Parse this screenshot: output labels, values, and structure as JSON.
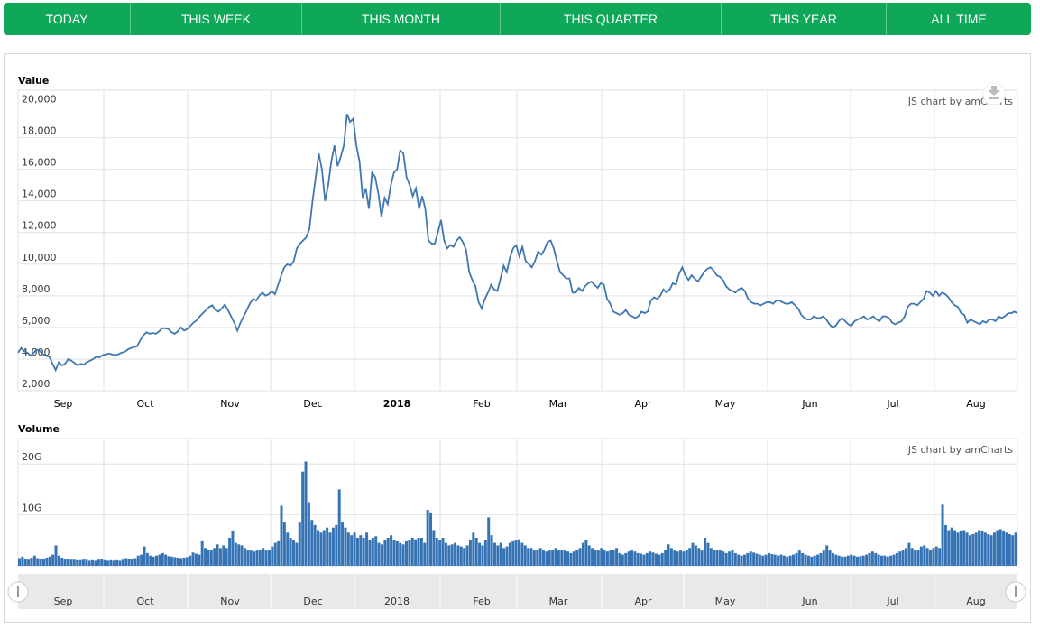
{
  "tabs": [
    {
      "label": "TODAY"
    },
    {
      "label": "THIS WEEK"
    },
    {
      "label": "THIS MONTH"
    },
    {
      "label": "THIS QUARTER"
    },
    {
      "label": "THIS YEAR"
    },
    {
      "label": "ALL TIME"
    }
  ],
  "credit": "JS chart by amCharts",
  "colors": {
    "accent": "#0ea858",
    "line": "#3f77b0",
    "bars": "#3573b4"
  },
  "chart_data": [
    {
      "type": "line",
      "title": "Value",
      "ylim": [
        2000,
        21000
      ],
      "yticks": [
        "2,000",
        "4,000",
        "6,000",
        "8,000",
        "10,000",
        "12,000",
        "14,000",
        "16,000",
        "18,000",
        "20,000"
      ],
      "xticks": [
        "Sep",
        "Oct",
        "Nov",
        "Dec",
        "2018",
        "Feb",
        "Mar",
        "Apr",
        "May",
        "Jun",
        "Jul",
        "Aug"
      ],
      "x_start": "2017-08-17",
      "x_end": "2018-08-20",
      "series": [
        {
          "values": [
            4400,
            4700,
            4500,
            4400,
            4200,
            4400,
            4600,
            4500,
            4300,
            4200,
            4150,
            3700,
            3300,
            3800,
            3600,
            3700,
            4000,
            3900,
            3750,
            3600,
            3700,
            3650,
            3800,
            3900,
            4000,
            4150,
            4100,
            4250,
            4300,
            4350,
            4300,
            4250,
            4300,
            4400,
            4450,
            4600,
            4700,
            4750,
            4800,
            5200,
            5500,
            5700,
            5600,
            5650,
            5600,
            5750,
            5950,
            5950,
            5900,
            5700,
            5600,
            5750,
            6000,
            5800,
            5900,
            6100,
            6300,
            6450,
            6700,
            6900,
            7100,
            7300,
            7400,
            7100,
            7000,
            7200,
            7450,
            7100,
            6700,
            6300,
            5800,
            6300,
            6700,
            7100,
            7500,
            7800,
            7700,
            8000,
            8200,
            8000,
            8100,
            8300,
            8100,
            8700,
            9300,
            9800,
            10000,
            9900,
            10200,
            11000,
            11300,
            11500,
            11700,
            12200,
            14000,
            15500,
            17000,
            16000,
            14000,
            15000,
            16500,
            17500,
            16200,
            16800,
            17500,
            19500,
            19000,
            19200,
            17500,
            16500,
            14200,
            14800,
            13500,
            15800,
            15500,
            14500,
            13000,
            14200,
            13800,
            15000,
            15800,
            16000,
            17200,
            17000,
            15500,
            15000,
            14300,
            14800,
            13500,
            14300,
            13500,
            11500,
            11300,
            11300,
            12000,
            12800,
            11500,
            11000,
            11200,
            11100,
            11500,
            11700,
            11400,
            10900,
            9500,
            9000,
            8600,
            7600,
            7200,
            7800,
            8200,
            8700,
            8400,
            8300,
            9100,
            9900,
            9500,
            10400,
            11000,
            11200,
            10500,
            11100,
            10200,
            10000,
            9800,
            10200,
            10800,
            10600,
            10900,
            11400,
            11500,
            11000,
            10200,
            9500,
            9300,
            9100,
            9100,
            8200,
            8200,
            8500,
            8300,
            8600,
            8800,
            8900,
            8700,
            8500,
            8800,
            8700,
            7800,
            7500,
            7000,
            6900,
            6800,
            6900,
            7100,
            6800,
            6700,
            6600,
            6700,
            7000,
            6900,
            7000,
            7700,
            7900,
            7800,
            8000,
            8400,
            8200,
            8400,
            8800,
            8700,
            9400,
            9800,
            9300,
            9000,
            9300,
            9100,
            8900,
            9200,
            9500,
            9700,
            9800,
            9600,
            9300,
            9200,
            9000,
            8600,
            8400,
            8300,
            8200,
            8400,
            8500,
            8300,
            7800,
            7600,
            7500,
            7500,
            7400,
            7500,
            7600,
            7600,
            7500,
            7700,
            7700,
            7600,
            7500,
            7500,
            7600,
            7400,
            7200,
            6800,
            6600,
            6500,
            6500,
            6700,
            6600,
            6600,
            6700,
            6500,
            6200,
            6000,
            6100,
            6400,
            6600,
            6400,
            6200,
            6100,
            6400,
            6500,
            6600,
            6700,
            6500,
            6600,
            6700,
            6500,
            6400,
            6700,
            6700,
            6600,
            6300,
            6200,
            6300,
            6400,
            6700,
            7300,
            7500,
            7500,
            7400,
            7600,
            7800,
            8300,
            8200,
            8000,
            8300,
            8000,
            8200,
            8100,
            7900,
            7600,
            7400,
            7300,
            6900,
            6800,
            6300,
            6500,
            6400,
            6300,
            6200,
            6400,
            6300,
            6500,
            6500,
            6400,
            6700,
            6600,
            6700,
            6900,
            6900,
            7000,
            6900
          ]
        }
      ]
    },
    {
      "type": "bar",
      "title": "Volume",
      "ylim": [
        0,
        25
      ],
      "yticks": [
        "10G",
        "20G"
      ],
      "y_units": "G",
      "xticks": [
        "Sep",
        "Oct",
        "Nov",
        "Dec",
        "2018",
        "Feb",
        "Mar",
        "Apr",
        "May",
        "Jun",
        "Jul",
        "Aug"
      ],
      "series": [
        {
          "values": [
            1.5,
            1.8,
            1.4,
            1.2,
            1.6,
            2.0,
            1.5,
            1.3,
            1.4,
            1.6,
            1.8,
            2.2,
            4.0,
            2.0,
            1.6,
            1.4,
            1.3,
            1.2,
            1.2,
            1.1,
            1.1,
            1.2,
            1.2,
            1.0,
            1.1,
            1.0,
            1.2,
            1.3,
            1.1,
            1.0,
            1.1,
            1.0,
            1.1,
            1.0,
            1.2,
            1.5,
            1.4,
            1.3,
            1.5,
            2.0,
            2.2,
            3.8,
            2.5,
            2.0,
            1.8,
            2.0,
            2.2,
            2.5,
            2.2,
            1.9,
            1.8,
            1.7,
            1.6,
            1.5,
            1.6,
            1.7,
            2.0,
            2.6,
            2.4,
            2.2,
            4.8,
            3.5,
            3.2,
            3.0,
            3.5,
            4.2,
            3.5,
            4.0,
            3.5,
            5.5,
            6.8,
            4.5,
            4.2,
            4.0,
            3.5,
            3.2,
            3.0,
            2.8,
            3.0,
            3.2,
            3.5,
            3.0,
            3.2,
            3.8,
            4.5,
            4.8,
            11.8,
            8.5,
            6.5,
            5.5,
            5.0,
            4.5,
            8.5,
            18.5,
            20.5,
            12.5,
            9.0,
            8.0,
            7.0,
            6.5,
            7.0,
            7.5,
            6.5,
            7.5,
            8.0,
            15.0,
            8.5,
            7.5,
            6.5,
            6.0,
            6.5,
            5.5,
            6.0,
            5.5,
            6.5,
            5.0,
            5.5,
            5.8,
            4.5,
            4.2,
            5.0,
            5.5,
            6.0,
            5.0,
            4.8,
            4.5,
            4.2,
            4.8,
            5.0,
            5.5,
            5.2,
            5.5,
            5.5,
            4.5,
            11.0,
            10.5,
            7.0,
            5.5,
            5.0,
            5.5,
            4.5,
            4.0,
            4.2,
            4.5,
            4.0,
            3.8,
            3.5,
            4.0,
            5.0,
            6.5,
            5.5,
            4.5,
            4.0,
            5.0,
            9.5,
            6.0,
            4.5,
            4.0,
            4.5,
            3.5,
            3.8,
            4.5,
            4.8,
            5.0,
            5.2,
            4.5,
            4.0,
            3.5,
            3.5,
            3.0,
            3.2,
            3.5,
            3.0,
            2.8,
            3.0,
            3.2,
            3.5,
            3.0,
            3.2,
            3.0,
            2.8,
            2.5,
            2.8,
            3.2,
            3.5,
            4.5,
            5.0,
            4.0,
            3.5,
            3.2,
            3.0,
            3.5,
            3.2,
            2.8,
            3.0,
            3.2,
            3.5,
            2.5,
            2.2,
            2.5,
            2.8,
            3.0,
            2.8,
            2.5,
            2.4,
            2.2,
            2.5,
            2.8,
            2.6,
            2.4,
            2.2,
            2.5,
            3.2,
            4.2,
            3.5,
            3.0,
            2.8,
            3.0,
            2.8,
            3.2,
            3.5,
            4.5,
            4.0,
            3.5,
            3.0,
            5.5,
            4.5,
            3.5,
            3.2,
            3.0,
            3.0,
            2.8,
            2.5,
            2.8,
            3.2,
            2.5,
            2.2,
            2.0,
            2.2,
            2.5,
            2.8,
            2.6,
            2.4,
            2.2,
            2.0,
            2.2,
            2.5,
            2.3,
            2.2,
            2.0,
            2.2,
            2.0,
            1.8,
            2.0,
            2.2,
            2.5,
            3.0,
            2.5,
            2.2,
            2.0,
            1.8,
            2.0,
            2.2,
            2.5,
            3.0,
            4.0,
            3.0,
            2.5,
            2.2,
            2.0,
            1.8,
            1.8,
            2.0,
            2.2,
            2.0,
            1.8,
            1.9,
            2.0,
            2.2,
            2.5,
            2.8,
            2.5,
            2.2,
            2.0,
            2.0,
            1.8,
            2.0,
            2.2,
            2.5,
            2.8,
            3.0,
            3.5,
            4.5,
            3.5,
            3.0,
            3.2,
            3.8,
            4.0,
            3.5,
            3.2,
            3.5,
            3.8,
            3.5,
            12.0,
            8.0,
            7.0,
            7.5,
            7.0,
            6.5,
            6.8,
            7.0,
            6.5,
            6.0,
            6.2,
            6.5,
            7.0,
            6.8,
            6.5,
            6.2,
            6.0,
            6.5,
            7.0,
            7.2,
            6.8,
            6.5,
            6.2,
            6.0,
            6.5
          ]
        }
      ]
    }
  ],
  "scrollbar": {
    "labels": [
      "Sep",
      "Oct",
      "Nov",
      "Dec",
      "2018",
      "Feb",
      "Mar",
      "Apr",
      "May",
      "Jun",
      "Jul",
      "Aug"
    ]
  }
}
